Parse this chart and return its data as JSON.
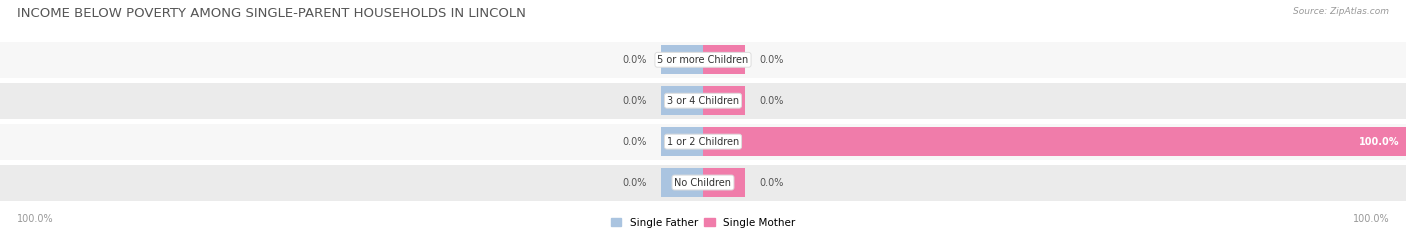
{
  "title": "INCOME BELOW POVERTY AMONG SINGLE-PARENT HOUSEHOLDS IN LINCOLN",
  "source": "Source: ZipAtlas.com",
  "categories": [
    "No Children",
    "1 or 2 Children",
    "3 or 4 Children",
    "5 or more Children"
  ],
  "single_father": [
    0.0,
    0.0,
    0.0,
    0.0
  ],
  "single_mother": [
    0.0,
    100.0,
    0.0,
    0.0
  ],
  "father_color": "#aac4e0",
  "mother_color": "#f07caa",
  "row_bg_even": "#ebebeb",
  "row_bg_odd": "#f7f7f7",
  "axis_min": -100,
  "axis_max": 100,
  "legend_labels": [
    "Single Father",
    "Single Mother"
  ],
  "bottom_left_label": "100.0%",
  "bottom_right_label": "100.0%",
  "title_fontsize": 9.5,
  "label_fontsize": 7,
  "category_fontsize": 7,
  "source_fontsize": 6.5
}
